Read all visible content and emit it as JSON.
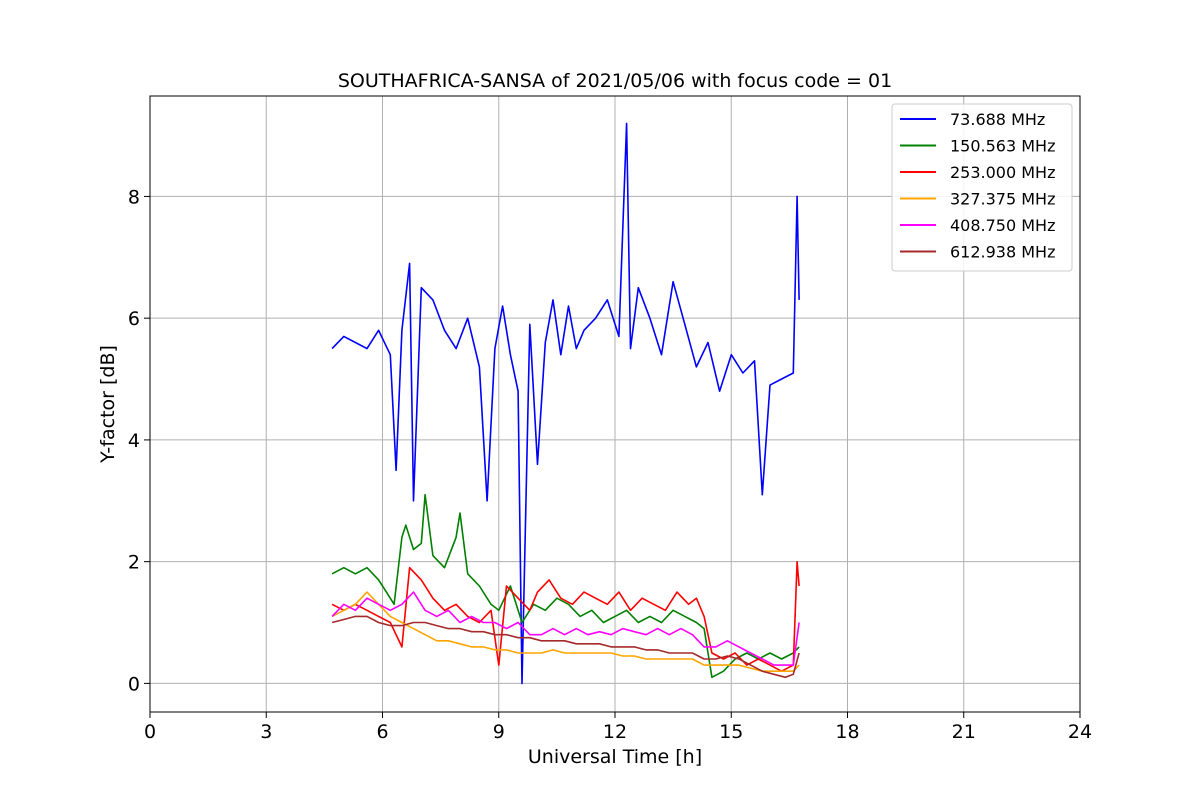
{
  "chart_data": {
    "type": "line",
    "title": "SOUTHAFRICA-SANSA of 2021/05/06 with focus code = 01",
    "xlabel": "Universal Time [h]",
    "ylabel": "Y-factor [dB]",
    "xlim": [
      0,
      24
    ],
    "ylim": [
      -0.47,
      9.65
    ],
    "xticks": [
      0,
      3,
      6,
      9,
      12,
      15,
      18,
      21,
      24
    ],
    "yticks": [
      0,
      2,
      4,
      6,
      8
    ],
    "xtick_labels": [
      "0",
      "3",
      "6",
      "9",
      "12",
      "15",
      "18",
      "21",
      "24"
    ],
    "ytick_labels": [
      "0",
      "2",
      "4",
      "6",
      "8"
    ],
    "grid": true,
    "legend_position": "top-right",
    "series": [
      {
        "name": " 73.688 MHz",
        "color": "#0000ff",
        "x": [
          4.7,
          5.0,
          5.3,
          5.6,
          5.9,
          6.2,
          6.35,
          6.5,
          6.7,
          6.8,
          7.0,
          7.3,
          7.6,
          7.9,
          8.2,
          8.5,
          8.7,
          8.9,
          9.1,
          9.3,
          9.5,
          9.6,
          9.8,
          10.0,
          10.2,
          10.4,
          10.6,
          10.8,
          11.0,
          11.2,
          11.5,
          11.8,
          12.1,
          12.3,
          12.4,
          12.6,
          12.9,
          13.2,
          13.5,
          13.8,
          14.1,
          14.4,
          14.7,
          15.0,
          15.3,
          15.6,
          15.8,
          16.0,
          16.3,
          16.6,
          16.7,
          16.75
        ],
        "y": [
          5.5,
          5.7,
          5.6,
          5.5,
          5.8,
          5.4,
          3.5,
          5.8,
          6.9,
          3.0,
          6.5,
          6.3,
          5.8,
          5.5,
          6.0,
          5.2,
          3.0,
          5.5,
          6.2,
          5.4,
          4.8,
          0.0,
          5.9,
          3.6,
          5.6,
          6.3,
          5.4,
          6.2,
          5.5,
          5.8,
          6.0,
          6.3,
          5.7,
          9.2,
          5.5,
          6.5,
          6.0,
          5.4,
          6.6,
          5.9,
          5.2,
          5.6,
          4.8,
          5.4,
          5.1,
          5.3,
          3.1,
          4.9,
          5.0,
          5.1,
          8.0,
          6.3
        ]
      },
      {
        "name": "150.563 MHz",
        "color": "#008000",
        "x": [
          4.7,
          5.0,
          5.3,
          5.6,
          5.9,
          6.1,
          6.3,
          6.5,
          6.6,
          6.8,
          7.0,
          7.1,
          7.3,
          7.6,
          7.9,
          8.0,
          8.2,
          8.5,
          8.8,
          9.0,
          9.3,
          9.6,
          9.9,
          10.2,
          10.5,
          10.8,
          11.1,
          11.4,
          11.7,
          12.0,
          12.3,
          12.6,
          12.9,
          13.2,
          13.5,
          13.8,
          14.1,
          14.3,
          14.5,
          14.8,
          15.1,
          15.4,
          15.7,
          16.0,
          16.3,
          16.6,
          16.75
        ],
        "y": [
          1.8,
          1.9,
          1.8,
          1.9,
          1.7,
          1.5,
          1.3,
          2.4,
          2.6,
          2.2,
          2.3,
          3.1,
          2.1,
          1.9,
          2.4,
          2.8,
          1.8,
          1.6,
          1.3,
          1.2,
          1.6,
          1.0,
          1.3,
          1.2,
          1.4,
          1.3,
          1.1,
          1.2,
          1.0,
          1.1,
          1.2,
          1.0,
          1.1,
          1.0,
          1.2,
          1.1,
          1.0,
          0.9,
          0.1,
          0.2,
          0.4,
          0.5,
          0.4,
          0.5,
          0.4,
          0.5,
          0.6
        ]
      },
      {
        "name": "253.000 MHz",
        "color": "#ff0000",
        "x": [
          4.7,
          5.0,
          5.3,
          5.6,
          5.9,
          6.2,
          6.5,
          6.7,
          7.0,
          7.3,
          7.6,
          7.9,
          8.2,
          8.5,
          8.8,
          9.0,
          9.2,
          9.5,
          9.8,
          10.0,
          10.3,
          10.6,
          10.9,
          11.2,
          11.5,
          11.8,
          12.1,
          12.4,
          12.7,
          13.0,
          13.3,
          13.6,
          13.9,
          14.1,
          14.3,
          14.5,
          14.8,
          15.1,
          15.4,
          15.7,
          16.0,
          16.3,
          16.6,
          16.7,
          16.75
        ],
        "y": [
          1.3,
          1.2,
          1.3,
          1.2,
          1.1,
          1.0,
          0.6,
          1.9,
          1.7,
          1.4,
          1.2,
          1.3,
          1.1,
          1.0,
          1.2,
          0.3,
          1.6,
          1.4,
          1.2,
          1.5,
          1.7,
          1.4,
          1.3,
          1.5,
          1.4,
          1.3,
          1.5,
          1.2,
          1.4,
          1.3,
          1.2,
          1.5,
          1.3,
          1.4,
          1.1,
          0.5,
          0.4,
          0.5,
          0.3,
          0.4,
          0.3,
          0.2,
          0.3,
          2.0,
          1.6
        ]
      },
      {
        "name": "327.375 MHz",
        "color": "#ffa500",
        "x": [
          4.7,
          5.0,
          5.3,
          5.6,
          5.9,
          6.2,
          6.5,
          6.8,
          7.1,
          7.4,
          7.7,
          8.0,
          8.3,
          8.6,
          8.9,
          9.2,
          9.5,
          9.8,
          10.1,
          10.4,
          10.7,
          11.0,
          11.3,
          11.6,
          11.9,
          12.2,
          12.5,
          12.8,
          13.1,
          13.4,
          13.7,
          14.0,
          14.3,
          14.6,
          14.9,
          15.2,
          15.5,
          15.8,
          16.1,
          16.4,
          16.6,
          16.75
        ],
        "y": [
          1.1,
          1.2,
          1.3,
          1.5,
          1.3,
          1.1,
          1.0,
          0.9,
          0.8,
          0.7,
          0.7,
          0.65,
          0.6,
          0.6,
          0.55,
          0.55,
          0.5,
          0.5,
          0.5,
          0.55,
          0.5,
          0.5,
          0.5,
          0.5,
          0.5,
          0.45,
          0.45,
          0.4,
          0.4,
          0.4,
          0.4,
          0.4,
          0.3,
          0.3,
          0.3,
          0.3,
          0.25,
          0.2,
          0.2,
          0.2,
          0.2,
          0.3
        ]
      },
      {
        "name": "408.750 MHz",
        "color": "#ff00ff",
        "x": [
          4.7,
          5.0,
          5.3,
          5.6,
          5.9,
          6.2,
          6.5,
          6.8,
          7.1,
          7.4,
          7.7,
          8.0,
          8.3,
          8.6,
          8.9,
          9.2,
          9.5,
          9.8,
          10.1,
          10.4,
          10.7,
          11.0,
          11.3,
          11.6,
          11.9,
          12.2,
          12.5,
          12.8,
          13.1,
          13.4,
          13.7,
          14.0,
          14.3,
          14.6,
          14.9,
          15.2,
          15.5,
          15.8,
          16.1,
          16.4,
          16.6,
          16.75
        ],
        "y": [
          1.1,
          1.3,
          1.2,
          1.4,
          1.3,
          1.2,
          1.3,
          1.5,
          1.2,
          1.1,
          1.2,
          1.0,
          1.1,
          1.0,
          1.0,
          0.9,
          1.0,
          0.8,
          0.8,
          0.9,
          0.8,
          0.9,
          0.8,
          0.85,
          0.8,
          0.9,
          0.85,
          0.8,
          0.9,
          0.8,
          0.9,
          0.8,
          0.6,
          0.6,
          0.7,
          0.6,
          0.5,
          0.4,
          0.3,
          0.3,
          0.3,
          1.0
        ]
      },
      {
        "name": "612.938 MHz",
        "color": "#a52a2a",
        "x": [
          4.7,
          5.0,
          5.3,
          5.6,
          5.9,
          6.2,
          6.5,
          6.8,
          7.1,
          7.4,
          7.7,
          8.0,
          8.3,
          8.6,
          8.9,
          9.2,
          9.5,
          9.8,
          10.1,
          10.4,
          10.7,
          11.0,
          11.3,
          11.6,
          11.9,
          12.2,
          12.5,
          12.8,
          13.1,
          13.4,
          13.7,
          14.0,
          14.3,
          14.6,
          14.9,
          15.2,
          15.5,
          15.8,
          16.1,
          16.4,
          16.6,
          16.75
        ],
        "y": [
          1.0,
          1.05,
          1.1,
          1.1,
          1.0,
          0.95,
          0.95,
          1.0,
          1.0,
          0.95,
          0.9,
          0.9,
          0.85,
          0.85,
          0.8,
          0.8,
          0.75,
          0.75,
          0.7,
          0.7,
          0.7,
          0.65,
          0.65,
          0.65,
          0.6,
          0.6,
          0.6,
          0.55,
          0.55,
          0.5,
          0.5,
          0.5,
          0.4,
          0.4,
          0.45,
          0.4,
          0.3,
          0.2,
          0.15,
          0.1,
          0.15,
          0.5
        ]
      }
    ]
  }
}
